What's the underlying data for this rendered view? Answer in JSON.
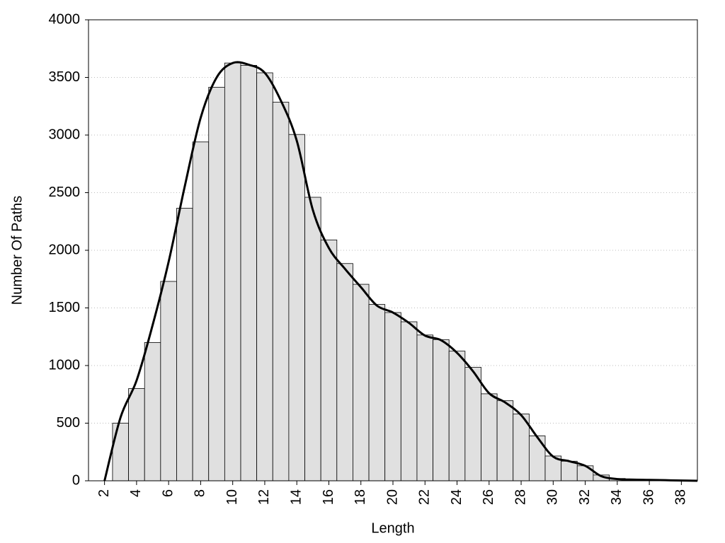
{
  "chart_data": {
    "type": "histogram",
    "xlabel": "Length",
    "ylabel": "Number Of Paths",
    "bins": [
      2.5,
      3.5,
      4.5,
      5.5,
      6.5,
      7.5,
      8.5,
      9.5,
      10.5,
      11.5,
      12.5,
      13.5,
      14.5,
      15.5,
      16.5,
      17.5,
      18.5,
      19.5,
      20.5,
      21.5,
      22.5,
      23.5,
      24.5,
      25.5,
      26.5,
      27.5,
      28.5,
      29.5,
      30.5,
      31.5,
      32.5,
      33.5,
      34.5,
      35.5,
      36.5,
      37.5,
      38.5
    ],
    "values": [
      500,
      800,
      1200,
      1730,
      2365,
      2940,
      3415,
      3625,
      3605,
      3540,
      3285,
      3005,
      2460,
      2090,
      1885,
      1705,
      1530,
      1460,
      1380,
      1265,
      1225,
      1125,
      985,
      755,
      695,
      580,
      390,
      215,
      170,
      130,
      50,
      20,
      12,
      8,
      5,
      3
    ],
    "color": "#e0e0e0",
    "curve": {
      "color": "#000000",
      "x": [
        2,
        3,
        4,
        5,
        6,
        7,
        8,
        9,
        10,
        11,
        12,
        13,
        14,
        15,
        16,
        17,
        18,
        19,
        20,
        21,
        22,
        23,
        24,
        25,
        26,
        27,
        28,
        29,
        30,
        31,
        32,
        33,
        34,
        35,
        36,
        37,
        38,
        39
      ],
      "values": [
        0,
        550,
        870,
        1350,
        1900,
        2550,
        3150,
        3500,
        3625,
        3610,
        3540,
        3300,
        2950,
        2350,
        2020,
        1840,
        1680,
        1520,
        1460,
        1370,
        1260,
        1220,
        1110,
        950,
        760,
        680,
        570,
        380,
        210,
        170,
        130,
        40,
        15,
        10,
        8,
        5,
        2,
        0
      ]
    },
    "xlim": [
      1,
      39
    ],
    "ylim": [
      0,
      4000
    ],
    "xticks": [
      2,
      4,
      6,
      8,
      10,
      12,
      14,
      16,
      18,
      20,
      22,
      24,
      26,
      28,
      30,
      32,
      34,
      36,
      38
    ],
    "yticks": [
      0,
      500,
      1000,
      1500,
      2000,
      2500,
      3000,
      3500,
      4000
    ],
    "grid": true
  }
}
